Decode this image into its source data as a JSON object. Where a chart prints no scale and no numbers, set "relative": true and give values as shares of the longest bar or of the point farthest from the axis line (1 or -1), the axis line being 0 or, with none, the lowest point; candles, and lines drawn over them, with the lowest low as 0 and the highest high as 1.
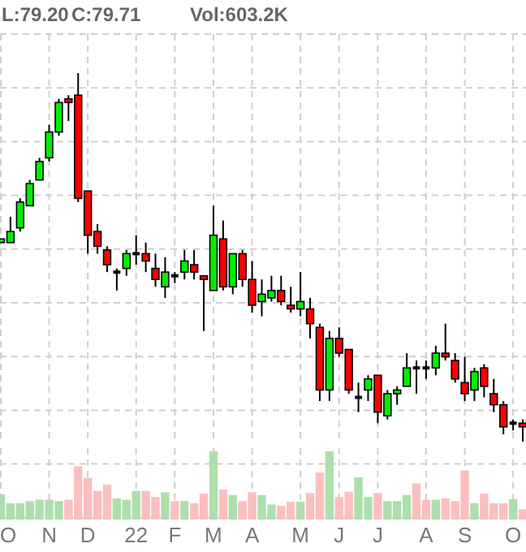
{
  "chart_data": [
    {
      "type": "candlestick",
      "relative": true,
      "grid": true,
      "annotations": [
        "L:79.20",
        "C:79.71",
        "Vol:603.2K"
      ],
      "categories": [
        null,
        null,
        null,
        null,
        null,
        null,
        null,
        null,
        null,
        null,
        null,
        null,
        null,
        null,
        null,
        null,
        null,
        null,
        null,
        null,
        null,
        null,
        null,
        null,
        null,
        null,
        null,
        null,
        null,
        null,
        null,
        null,
        null,
        null,
        null,
        null,
        null,
        null,
        null,
        null,
        null,
        null,
        null,
        null,
        null,
        null,
        null,
        null,
        null,
        null,
        null,
        null,
        null,
        null,
        null
      ],
      "ohlc": [
        [
          0.54,
          0.55,
          0.54,
          0.55
        ],
        [
          0.54,
          0.61,
          0.54,
          0.57
        ],
        [
          0.58,
          0.66,
          0.57,
          0.65
        ],
        [
          0.64,
          0.71,
          0.64,
          0.7
        ],
        [
          0.71,
          0.77,
          0.71,
          0.76
        ],
        [
          0.77,
          0.86,
          0.76,
          0.84
        ],
        [
          0.84,
          0.93,
          0.83,
          0.92
        ],
        [
          0.93,
          0.94,
          0.87,
          0.92
        ],
        [
          0.94,
          1,
          0.65,
          0.66
        ],
        [
          0.68,
          0.68,
          0.51,
          0.56
        ],
        [
          0.57,
          0.59,
          0.51,
          0.53
        ],
        [
          0.52,
          0.53,
          0.46,
          0.48
        ],
        [
          0.46,
          0.47,
          0.41,
          0.46
        ],
        [
          0.47,
          0.52,
          0.45,
          0.51
        ],
        [
          0.51,
          0.56,
          0.48,
          0.51
        ],
        [
          0.51,
          0.54,
          0.46,
          0.49
        ],
        [
          0.47,
          0.51,
          0.42,
          0.44
        ],
        [
          0.42,
          0.5,
          0.39,
          0.46
        ],
        [
          0.45,
          0.46,
          0.43,
          0.45
        ],
        [
          0.46,
          0.52,
          0.44,
          0.49
        ],
        [
          0.48,
          0.52,
          0.44,
          0.46
        ],
        [
          0.45,
          0.45,
          0.3,
          0.44
        ],
        [
          0.41,
          0.64,
          0.41,
          0.56
        ],
        [
          0.55,
          0.6,
          0.41,
          0.42
        ],
        [
          0.42,
          0.51,
          0.4,
          0.51
        ],
        [
          0.51,
          0.52,
          0.42,
          0.44
        ],
        [
          0.44,
          0.49,
          0.35,
          0.37
        ],
        [
          0.38,
          0.44,
          0.34,
          0.4
        ],
        [
          0.39,
          0.45,
          0.38,
          0.41
        ],
        [
          0.41,
          0.45,
          0.37,
          0.38
        ],
        [
          0.37,
          0.42,
          0.35,
          0.36
        ],
        [
          0.36,
          0.46,
          0.34,
          0.38
        ],
        [
          0.36,
          0.39,
          0.28,
          0.32
        ],
        [
          0.31,
          0.32,
          0.11,
          0.14
        ],
        [
          0.14,
          0.3,
          0.11,
          0.28
        ],
        [
          0.28,
          0.31,
          0.23,
          0.24
        ],
        [
          0.25,
          0.25,
          0.13,
          0.14
        ],
        [
          0.12,
          0.16,
          0.08,
          0.12
        ],
        [
          0.14,
          0.18,
          0.11,
          0.17
        ],
        [
          0.18,
          0.18,
          0.05,
          0.08
        ],
        [
          0.07,
          0.14,
          0.06,
          0.13
        ],
        [
          0.13,
          0.15,
          0.1,
          0.14
        ],
        [
          0.15,
          0.24,
          0.15,
          0.2
        ],
        [
          0.2,
          0.22,
          0.13,
          0.2
        ],
        [
          0.2,
          0.22,
          0.17,
          0.2
        ],
        [
          0.2,
          0.26,
          0.18,
          0.24
        ],
        [
          0.24,
          0.32,
          0.22,
          0.23
        ],
        [
          0.22,
          0.24,
          0.16,
          0.17
        ],
        [
          0.16,
          0.23,
          0.11,
          0.13
        ],
        [
          0.14,
          0.2,
          0.11,
          0.19
        ],
        [
          0.2,
          0.21,
          0.12,
          0.15
        ],
        [
          0.13,
          0.17,
          0.08,
          0.1
        ],
        [
          0.1,
          0.11,
          0.02,
          0.04
        ],
        [
          0.05,
          0.06,
          0.03,
          0.05
        ],
        [
          0.05,
          0.06,
          0,
          0.04
        ]
      ],
      "colors": [
        "#00ee00",
        "#00ee00",
        "#00ee00",
        "#00ee00",
        "#00ee00",
        "#00ee00",
        "#00ee00",
        "#ff0000",
        "#ff0000",
        "#ff0000",
        "#ff0000",
        "#ff0000",
        "#000000",
        "#00ee00",
        "#000000",
        "#ff0000",
        "#ff0000",
        "#00ee00",
        "#000000",
        "#00ee00",
        "#ff0000",
        "#ff0000",
        "#00ee00",
        "#ff0000",
        "#00ee00",
        "#ff0000",
        "#ff0000",
        "#00ee00",
        "#00ee00",
        "#ff0000",
        "#ff0000",
        "#00ee00",
        "#ff0000",
        "#ff0000",
        "#00ee00",
        "#ff0000",
        "#ff0000",
        "#000000",
        "#00ee00",
        "#ff0000",
        "#00ee00",
        "#00ee00",
        "#00ee00",
        "#000000",
        "#000000",
        "#00ee00",
        "#ff0000",
        "#ff0000",
        "#ff0000",
        "#00ee00",
        "#ff0000",
        "#ff0000",
        "#ff0000",
        "#000000",
        "#ff0000"
      ]
    },
    {
      "type": "bar",
      "relative": true,
      "grid": true,
      "categories": [
        "O",
        null,
        null,
        null,
        null,
        "N",
        null,
        null,
        null,
        "D",
        null,
        null,
        null,
        null,
        "22",
        null,
        null,
        null,
        "F",
        null,
        null,
        null,
        "M",
        null,
        null,
        null,
        "A",
        null,
        null,
        null,
        null,
        "M",
        null,
        null,
        null,
        "J",
        null,
        null,
        null,
        "J",
        null,
        null,
        null,
        null,
        "A",
        null,
        null,
        null,
        "S",
        null,
        null,
        null,
        null,
        "O",
        null
      ],
      "values": [
        0.37,
        0.24,
        0.24,
        0.27,
        0.29,
        0.29,
        0.27,
        0.29,
        0.78,
        0.61,
        0.42,
        0.51,
        0.31,
        0.29,
        0.42,
        0.42,
        0.33,
        0.4,
        0.27,
        0.27,
        0.24,
        0.38,
        1,
        0.44,
        0.36,
        0.27,
        0.4,
        0.36,
        0.22,
        0.2,
        0.26,
        0.26,
        0.39,
        0.69,
        1,
        0.33,
        0.41,
        0.62,
        0.33,
        0.39,
        0.27,
        0.27,
        0.36,
        0.53,
        0.29,
        0.29,
        0.31,
        0.27,
        0.72,
        0.24,
        0.38,
        0.24,
        0.24,
        0.3,
        0.15
      ],
      "colors": [
        "#addfad",
        "#addfad",
        "#addfad",
        "#addfad",
        "#addfad",
        "#addfad",
        "#addfad",
        "#fcbfbf",
        "#fcbfbf",
        "#fcbfbf",
        "#fcbfbf",
        "#fcbfbf",
        "#addfad",
        "#addfad",
        "#addfad",
        "#fcbfbf",
        "#fcbfbf",
        "#addfad",
        "#fcbfbf",
        "#addfad",
        "#fcbfbf",
        "#fcbfbf",
        "#addfad",
        "#fcbfbf",
        "#addfad",
        "#fcbfbf",
        "#fcbfbf",
        "#addfad",
        "#addfad",
        "#fcbfbf",
        "#fcbfbf",
        "#addfad",
        "#fcbfbf",
        "#fcbfbf",
        "#addfad",
        "#fcbfbf",
        "#fcbfbf",
        "#addfad",
        "#addfad",
        "#fcbfbf",
        "#addfad",
        "#addfad",
        "#addfad",
        "#fcbfbf",
        "#fcbfbf",
        "#addfad",
        "#fcbfbf",
        "#fcbfbf",
        "#fcbfbf",
        "#addfad",
        "#fcbfbf",
        "#fcbfbf",
        "#fcbfbf",
        "#addfad",
        "#fcbfbf"
      ]
    }
  ]
}
